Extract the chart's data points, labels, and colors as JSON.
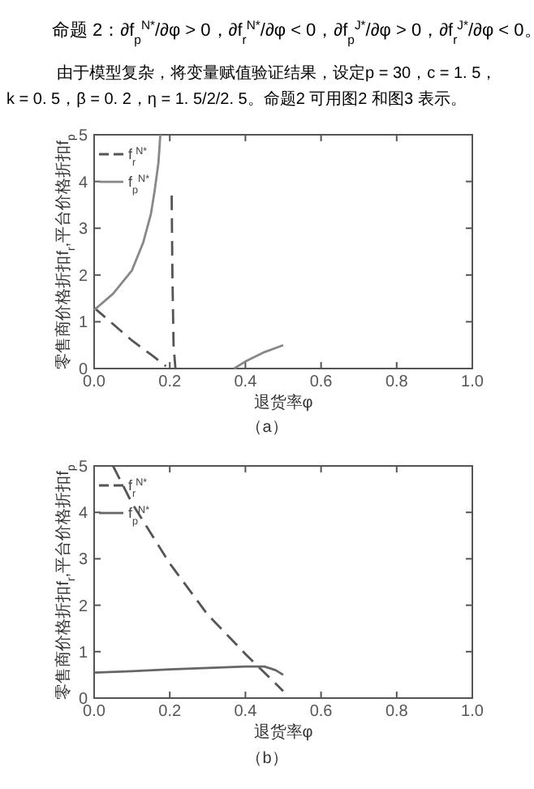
{
  "chart_data": [
    {
      "type": "line",
      "xlabel": "退货率φ",
      "ylabel": "零售商价格折扣f$_{r}$,平台价格折扣f$_{p}$",
      "xlim": [
        0,
        1
      ],
      "ylim": [
        0,
        5
      ],
      "xticks": [
        {
          "value": 0,
          "label": "0.0"
        },
        {
          "value": 0.2,
          "label": "0.2"
        },
        {
          "value": 0.4,
          "label": "0.4"
        },
        {
          "value": 0.6,
          "label": "0.6"
        },
        {
          "value": 0.8,
          "label": "0.8"
        },
        {
          "value": 1,
          "label": "1.0"
        }
      ],
      "yticks": [
        0,
        1,
        2,
        3,
        4,
        5
      ],
      "legend": "top left",
      "grid": false,
      "annotations": [
        "命题 2：∂f$_{p}$$^{N*}$/∂φ > 0，∂f$_{r}$$^{N*}$/∂φ < 0，∂f$_{p}$$^{J*}$/∂φ > 0，∂f$_{r}$$^{J*}$/∂φ < 0。",
        "由于模型复杂，将变量赋值验证结果，设定p = 30，c = 1. 5，",
        "k = 0. 5，β = 0. 2，η = 1. 5/2/2. 5。命题2 可用图2 和图3 表示。",
        "（a）"
      ],
      "series": [
        {
          "name": "f$_{r}$$^{N*}$",
          "color": "#555555",
          "line_style": "dashed",
          "x": [
            0,
            0.05,
            0.1,
            0.15,
            0.19
          ],
          "values": [
            1.3,
            0.95,
            0.6,
            0.3,
            0.05
          ]
        },
        {
          "name": "f$_{p}$$^{N*}$",
          "color": "#888888",
          "line_style": "solid",
          "x": [
            0,
            0.05,
            0.1,
            0.13,
            0.15,
            0.16,
            0.17,
            0.175
          ],
          "values": [
            1.25,
            1.6,
            2.1,
            2.7,
            3.3,
            3.8,
            4.4,
            5
          ]
        },
        {
          "color": "#555555",
          "line_style": "dashed",
          "x": [
            0.205,
            0.207,
            0.21,
            0.215
          ],
          "values": [
            3.7,
            2,
            0.5,
            0
          ]
        },
        {
          "color": "#888888",
          "line_style": "solid",
          "x": [
            0.37,
            0.4,
            0.45,
            0.5
          ],
          "values": [
            0,
            0.15,
            0.35,
            0.5
          ]
        }
      ]
    },
    {
      "type": "line",
      "xlabel": "退货率φ",
      "ylabel": "零售商价格折扣f$_{r}$,平台价格折扣f$_{p}$",
      "xlim": [
        0,
        1
      ],
      "ylim": [
        0,
        5
      ],
      "xticks": [
        {
          "value": 0,
          "label": "0.0"
        },
        {
          "value": 0.2,
          "label": "0.2"
        },
        {
          "value": 0.4,
          "label": "0.4"
        },
        {
          "value": 0.6,
          "label": "0.6"
        },
        {
          "value": 0.8,
          "label": "0.8"
        },
        {
          "value": 1,
          "label": "1.0"
        }
      ],
      "yticks": [
        0,
        1,
        2,
        3,
        4,
        5
      ],
      "legend": "top left",
      "grid": false,
      "annotations": [
        "（b）"
      ],
      "series": [
        {
          "name": "f$_{r}$$^{N*}$",
          "color": "#555555",
          "line_style": "dashed",
          "x": [
            0.05,
            0.1,
            0.2,
            0.3,
            0.4,
            0.45,
            0.5
          ],
          "values": [
            5,
            4.2,
            2.9,
            1.8,
            0.95,
            0.55,
            0.15
          ]
        },
        {
          "name": "f$_{p}$$^{N*}$",
          "color": "#666666",
          "line_style": "solid",
          "x": [
            0,
            0.1,
            0.2,
            0.3,
            0.4,
            0.45,
            0.48,
            0.5
          ],
          "values": [
            0.55,
            0.58,
            0.62,
            0.65,
            0.68,
            0.68,
            0.6,
            0.5
          ]
        }
      ]
    }
  ]
}
